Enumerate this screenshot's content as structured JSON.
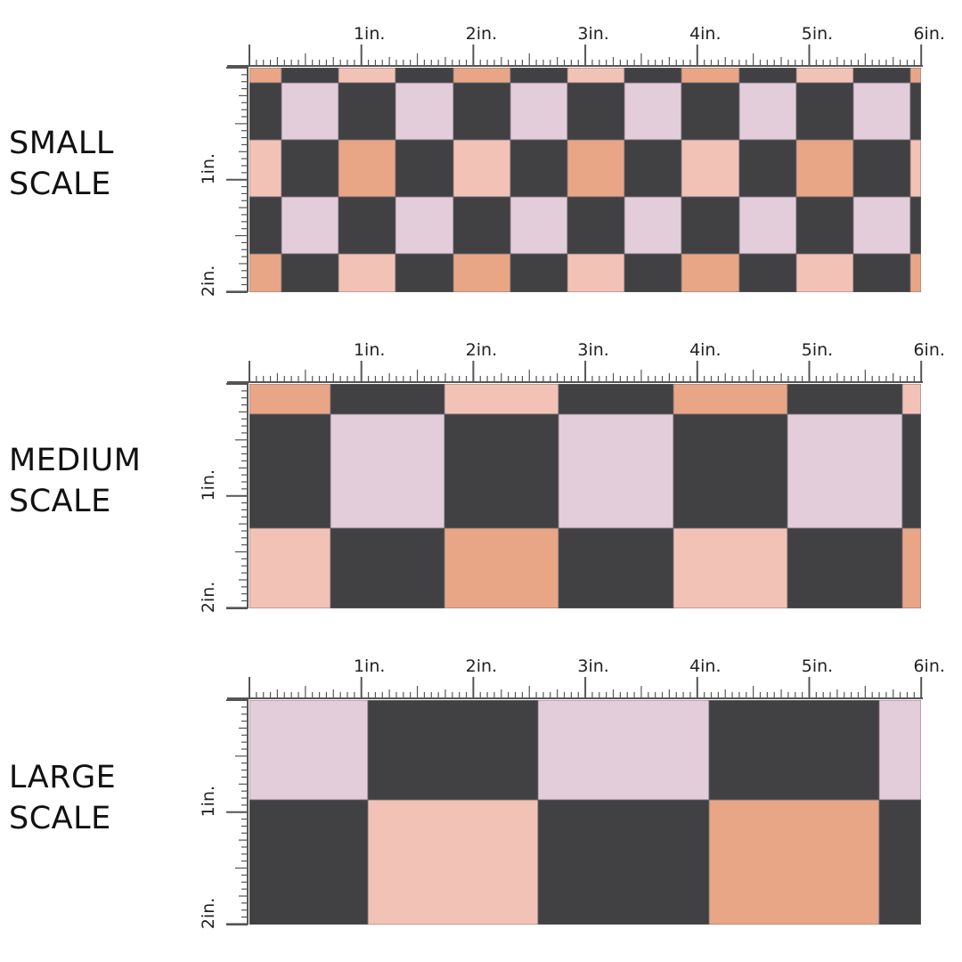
{
  "colors": {
    "dark": "#414042",
    "lilac": "#e3cdda",
    "blush": "#f3c2b7",
    "peach": "#e8a687",
    "ruler": "#555555",
    "background": "#ffffff"
  },
  "panels": [
    {
      "id": "small",
      "label_line1": "SMALL",
      "label_line2": "SCALE",
      "h_ticks": [
        "1in.",
        "2in.",
        "3in.",
        "4in.",
        "5in.",
        "6in."
      ],
      "v_ticks": [
        "1in.",
        "2in."
      ],
      "pattern": {
        "rows": [
          [
            "peach",
            "dark",
            "blush",
            "dark",
            "peach",
            "dark",
            "blush",
            "dark",
            "peach",
            "dark",
            "blush",
            "dark",
            "peach"
          ],
          [
            "dark",
            "lilac",
            "dark",
            "lilac",
            "dark",
            "lilac",
            "dark",
            "lilac",
            "dark",
            "lilac",
            "dark",
            "lilac",
            "dark"
          ],
          [
            "blush",
            "dark",
            "peach",
            "dark",
            "blush",
            "dark",
            "peach",
            "dark",
            "blush",
            "dark",
            "peach",
            "dark",
            "blush"
          ],
          [
            "dark",
            "lilac",
            "dark",
            "lilac",
            "dark",
            "lilac",
            "dark",
            "lilac",
            "dark",
            "lilac",
            "dark",
            "lilac",
            "dark"
          ],
          [
            "peach",
            "dark",
            "blush",
            "dark",
            "peach",
            "dark",
            "blush",
            "dark",
            "peach",
            "dark",
            "blush",
            "dark",
            "peach"
          ]
        ]
      }
    },
    {
      "id": "medium",
      "label_line1": "MEDIUM",
      "label_line2": "SCALE",
      "h_ticks": [
        "1in.",
        "2in.",
        "3in.",
        "4in.",
        "5in.",
        "6in."
      ],
      "v_ticks": [
        "1in.",
        "2in."
      ],
      "pattern": {
        "rows": [
          [
            "peach",
            "dark",
            "blush",
            "dark",
            "peach",
            "dark",
            "blush"
          ],
          [
            "dark",
            "lilac",
            "dark",
            "lilac",
            "dark",
            "lilac",
            "dark"
          ],
          [
            "blush",
            "dark",
            "peach",
            "dark",
            "blush",
            "dark",
            "peach"
          ]
        ]
      }
    },
    {
      "id": "large",
      "label_line1": "LARGE",
      "label_line2": "SCALE",
      "h_ticks": [
        "1in.",
        "2in.",
        "3in.",
        "4in.",
        "5in.",
        "6in."
      ],
      "v_ticks": [
        "1in.",
        "2in."
      ],
      "pattern": {
        "rows": [
          [
            "lilac",
            "dark",
            "lilac",
            "dark",
            "lilac"
          ],
          [
            "dark",
            "blush",
            "dark",
            "peach",
            "dark"
          ]
        ]
      }
    }
  ]
}
